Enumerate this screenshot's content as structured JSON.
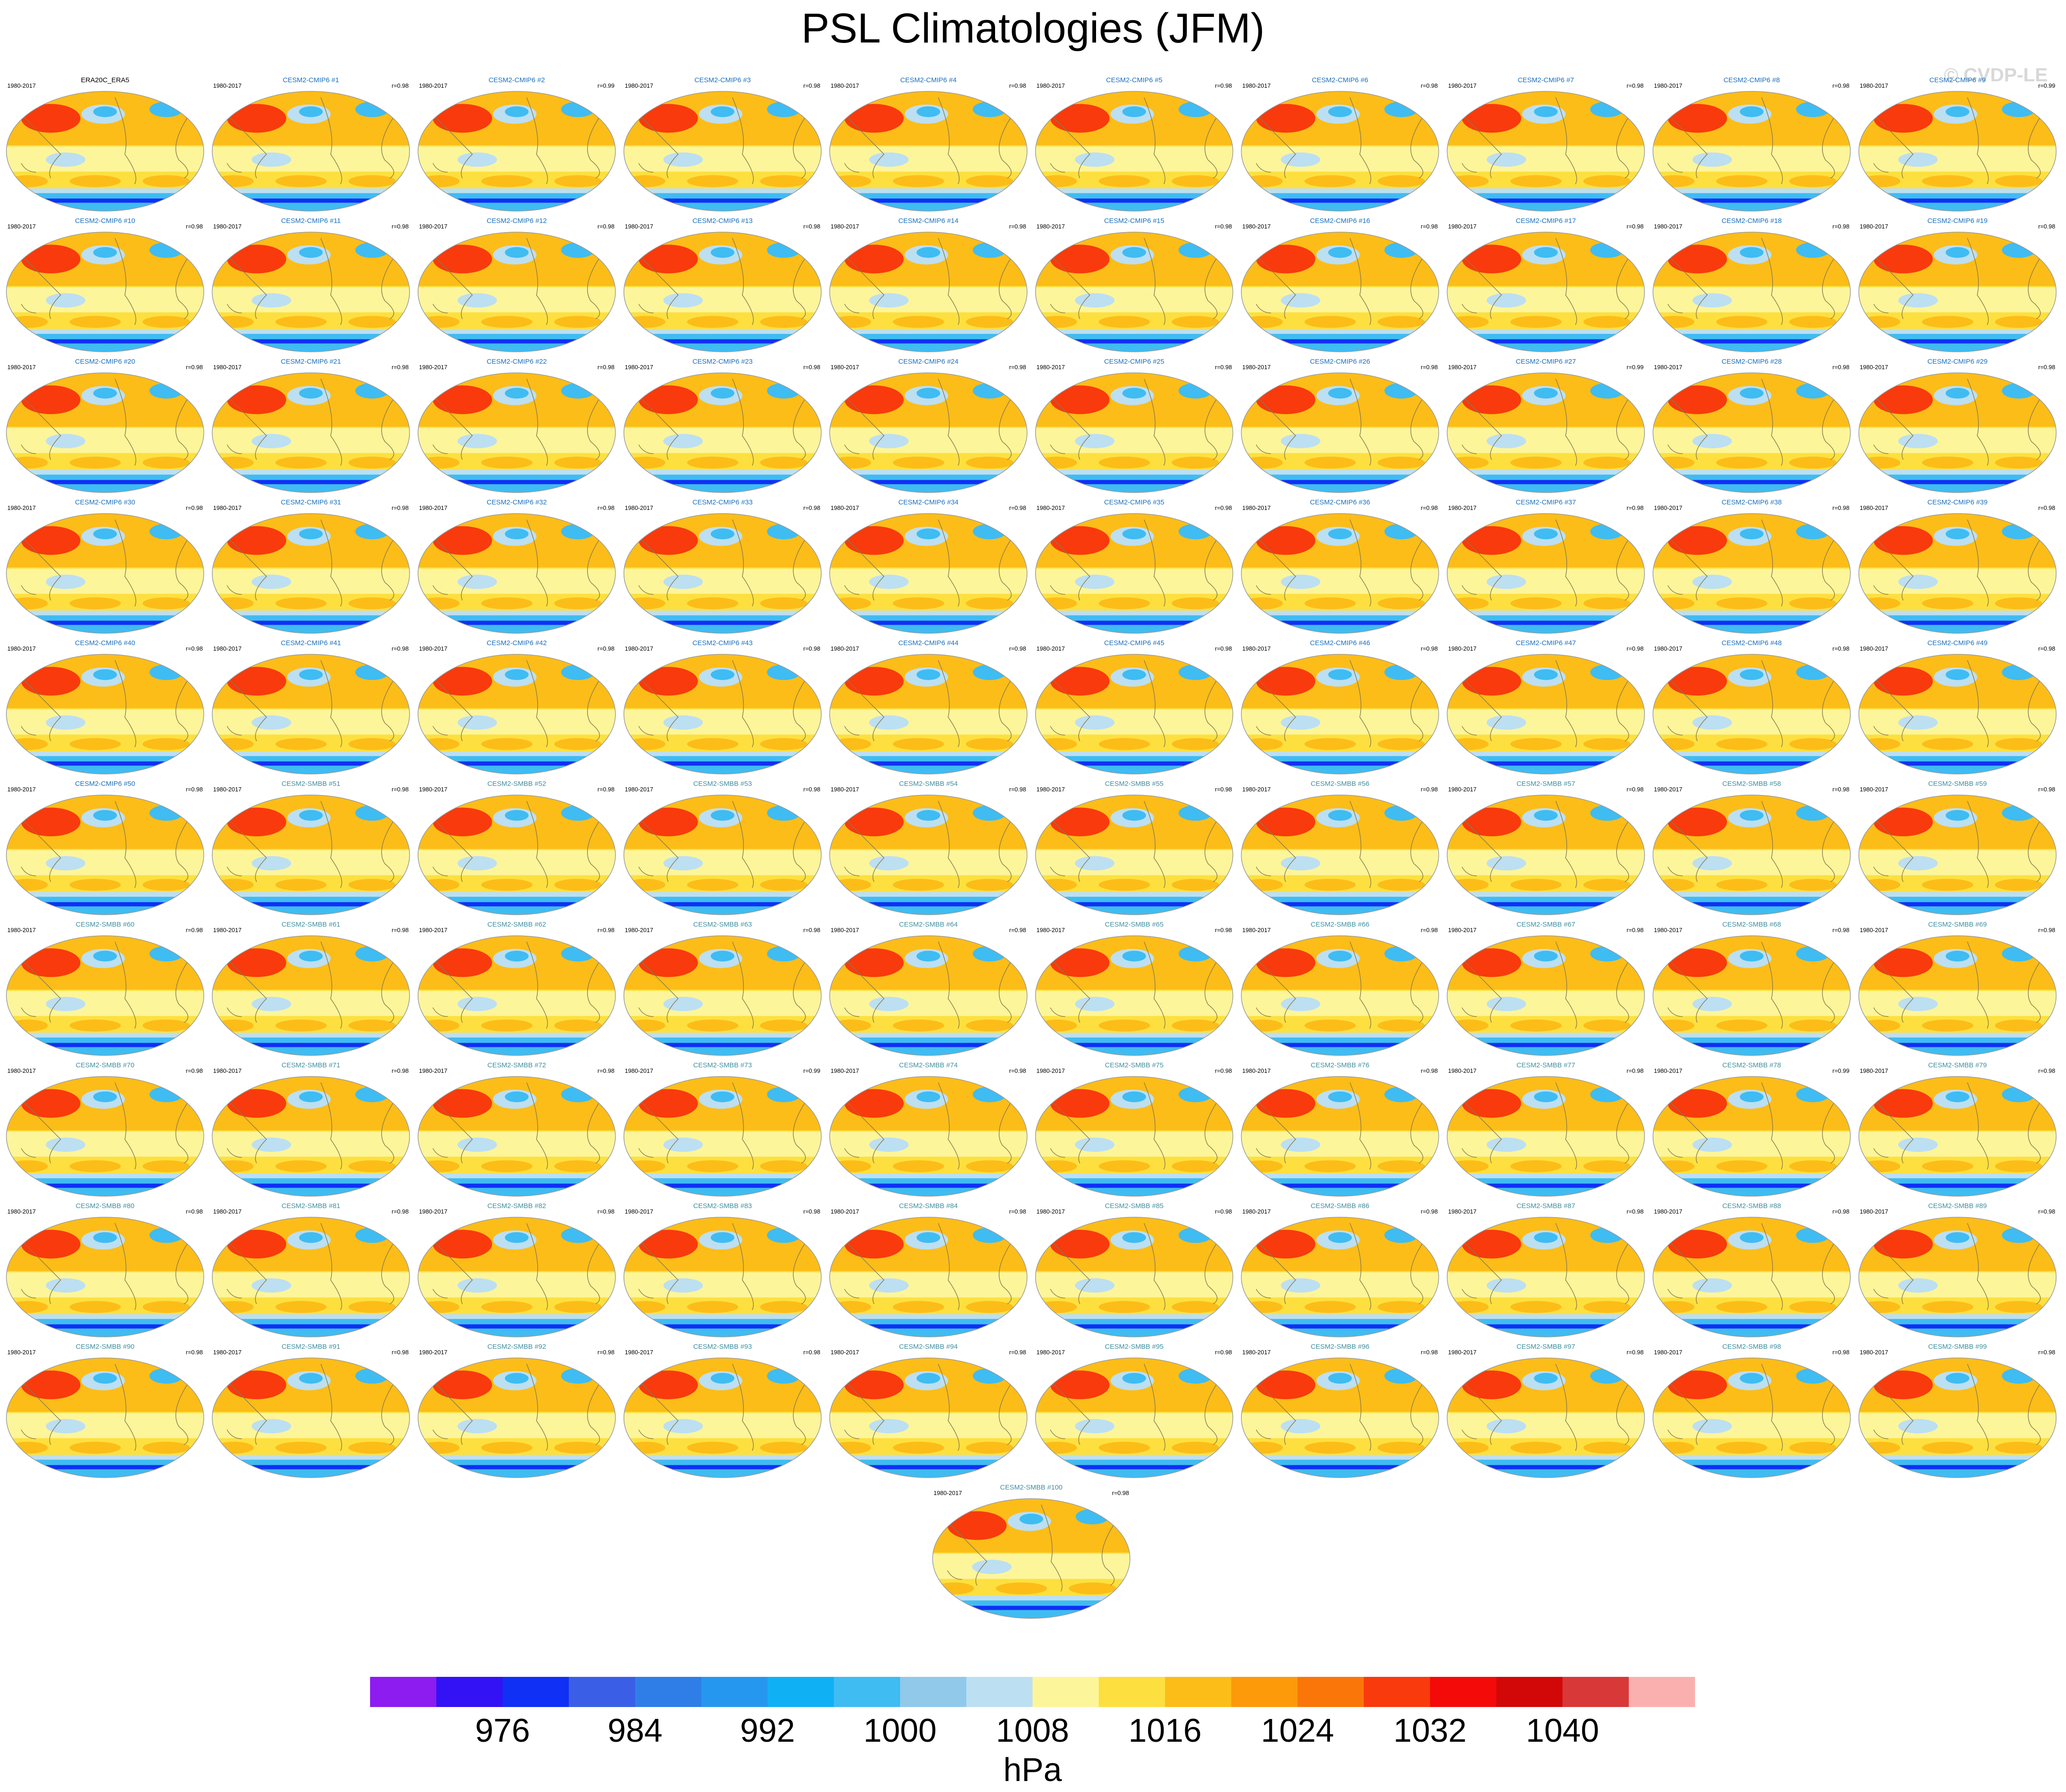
{
  "title": "PSL Climatologies (JFM)",
  "watermark": "© CVDP-LE",
  "chart_data": {
    "type": "heatmap",
    "title": "PSL Climatologies (JFM)",
    "panel_period": "1980-2017",
    "panels": [
      {
        "name": "ERA20C_ERA5",
        "period": "1980-2017",
        "r": ""
      },
      {
        "name": "CESM2-CMIP6 #1",
        "period": "1980-2017",
        "r": "r=0.98"
      },
      {
        "name": "CESM2-CMIP6 #2",
        "period": "1980-2017",
        "r": "r=0.99"
      },
      {
        "name": "CESM2-CMIP6 #3",
        "period": "1980-2017",
        "r": "r=0.98"
      },
      {
        "name": "CESM2-CMIP6 #4",
        "period": "1980-2017",
        "r": "r=0.98"
      },
      {
        "name": "CESM2-CMIP6 #5",
        "period": "1980-2017",
        "r": "r=0.98"
      },
      {
        "name": "CESM2-CMIP6 #6",
        "period": "1980-2017",
        "r": "r=0.98"
      },
      {
        "name": "CESM2-CMIP6 #7",
        "period": "1980-2017",
        "r": "r=0.98"
      },
      {
        "name": "CESM2-CMIP6 #8",
        "period": "1980-2017",
        "r": "r=0.98"
      },
      {
        "name": "CESM2-CMIP6 #9",
        "period": "1980-2017",
        "r": "r=0.99"
      },
      {
        "name": "CESM2-CMIP6 #10",
        "period": "1980-2017",
        "r": "r=0.98"
      },
      {
        "name": "CESM2-CMIP6 #11",
        "period": "1980-2017",
        "r": "r=0.98"
      },
      {
        "name": "CESM2-CMIP6 #12",
        "period": "1980-2017",
        "r": "r=0.98"
      },
      {
        "name": "CESM2-CMIP6 #13",
        "period": "1980-2017",
        "r": "r=0.98"
      },
      {
        "name": "CESM2-CMIP6 #14",
        "period": "1980-2017",
        "r": "r=0.98"
      },
      {
        "name": "CESM2-CMIP6 #15",
        "period": "1980-2017",
        "r": "r=0.98"
      },
      {
        "name": "CESM2-CMIP6 #16",
        "period": "1980-2017",
        "r": "r=0.98"
      },
      {
        "name": "CESM2-CMIP6 #17",
        "period": "1980-2017",
        "r": "r=0.98"
      },
      {
        "name": "CESM2-CMIP6 #18",
        "period": "1980-2017",
        "r": "r=0.98"
      },
      {
        "name": "CESM2-CMIP6 #19",
        "period": "1980-2017",
        "r": "r=0.98"
      },
      {
        "name": "CESM2-CMIP6 #20",
        "period": "1980-2017",
        "r": "r=0.98"
      },
      {
        "name": "CESM2-CMIP6 #21",
        "period": "1980-2017",
        "r": "r=0.98"
      },
      {
        "name": "CESM2-CMIP6 #22",
        "period": "1980-2017",
        "r": "r=0.98"
      },
      {
        "name": "CESM2-CMIP6 #23",
        "period": "1980-2017",
        "r": "r=0.98"
      },
      {
        "name": "CESM2-CMIP6 #24",
        "period": "1980-2017",
        "r": "r=0.98"
      },
      {
        "name": "CESM2-CMIP6 #25",
        "period": "1980-2017",
        "r": "r=0.98"
      },
      {
        "name": "CESM2-CMIP6 #26",
        "period": "1980-2017",
        "r": "r=0.98"
      },
      {
        "name": "CESM2-CMIP6 #27",
        "period": "1980-2017",
        "r": "r=0.99"
      },
      {
        "name": "CESM2-CMIP6 #28",
        "period": "1980-2017",
        "r": "r=0.98"
      },
      {
        "name": "CESM2-CMIP6 #29",
        "period": "1980-2017",
        "r": "r=0.98"
      },
      {
        "name": "CESM2-CMIP6 #30",
        "period": "1980-2017",
        "r": "r=0.98"
      },
      {
        "name": "CESM2-CMIP6 #31",
        "period": "1980-2017",
        "r": "r=0.98"
      },
      {
        "name": "CESM2-CMIP6 #32",
        "period": "1980-2017",
        "r": "r=0.98"
      },
      {
        "name": "CESM2-CMIP6 #33",
        "period": "1980-2017",
        "r": "r=0.98"
      },
      {
        "name": "CESM2-CMIP6 #34",
        "period": "1980-2017",
        "r": "r=0.98"
      },
      {
        "name": "CESM2-CMIP6 #35",
        "period": "1980-2017",
        "r": "r=0.98"
      },
      {
        "name": "CESM2-CMIP6 #36",
        "period": "1980-2017",
        "r": "r=0.98"
      },
      {
        "name": "CESM2-CMIP6 #37",
        "period": "1980-2017",
        "r": "r=0.98"
      },
      {
        "name": "CESM2-CMIP6 #38",
        "period": "1980-2017",
        "r": "r=0.98"
      },
      {
        "name": "CESM2-CMIP6 #39",
        "period": "1980-2017",
        "r": "r=0.98"
      },
      {
        "name": "CESM2-CMIP6 #40",
        "period": "1980-2017",
        "r": "r=0.98"
      },
      {
        "name": "CESM2-CMIP6 #41",
        "period": "1980-2017",
        "r": "r=0.98"
      },
      {
        "name": "CESM2-CMIP6 #42",
        "period": "1980-2017",
        "r": "r=0.98"
      },
      {
        "name": "CESM2-CMIP6 #43",
        "period": "1980-2017",
        "r": "r=0.98"
      },
      {
        "name": "CESM2-CMIP6 #44",
        "period": "1980-2017",
        "r": "r=0.98"
      },
      {
        "name": "CESM2-CMIP6 #45",
        "period": "1980-2017",
        "r": "r=0.98"
      },
      {
        "name": "CESM2-CMIP6 #46",
        "period": "1980-2017",
        "r": "r=0.98"
      },
      {
        "name": "CESM2-CMIP6 #47",
        "period": "1980-2017",
        "r": "r=0.98"
      },
      {
        "name": "CESM2-CMIP6 #48",
        "period": "1980-2017",
        "r": "r=0.98"
      },
      {
        "name": "CESM2-CMIP6 #49",
        "period": "1980-2017",
        "r": "r=0.98"
      },
      {
        "name": "CESM2-CMIP6 #50",
        "period": "1980-2017",
        "r": "r=0.98"
      },
      {
        "name": "CESM2-SMBB #51",
        "period": "1980-2017",
        "r": "r=0.98"
      },
      {
        "name": "CESM2-SMBB #52",
        "period": "1980-2017",
        "r": "r=0.98"
      },
      {
        "name": "CESM2-SMBB #53",
        "period": "1980-2017",
        "r": "r=0.98"
      },
      {
        "name": "CESM2-SMBB #54",
        "period": "1980-2017",
        "r": "r=0.98"
      },
      {
        "name": "CESM2-SMBB #55",
        "period": "1980-2017",
        "r": "r=0.98"
      },
      {
        "name": "CESM2-SMBB #56",
        "period": "1980-2017",
        "r": "r=0.98"
      },
      {
        "name": "CESM2-SMBB #57",
        "period": "1980-2017",
        "r": "r=0.98"
      },
      {
        "name": "CESM2-SMBB #58",
        "period": "1980-2017",
        "r": "r=0.98"
      },
      {
        "name": "CESM2-SMBB #59",
        "period": "1980-2017",
        "r": "r=0.98"
      },
      {
        "name": "CESM2-SMBB #60",
        "period": "1980-2017",
        "r": "r=0.98"
      },
      {
        "name": "CESM2-SMBB #61",
        "period": "1980-2017",
        "r": "r=0.98"
      },
      {
        "name": "CESM2-SMBB #62",
        "period": "1980-2017",
        "r": "r=0.98"
      },
      {
        "name": "CESM2-SMBB #63",
        "period": "1980-2017",
        "r": "r=0.98"
      },
      {
        "name": "CESM2-SMBB #64",
        "period": "1980-2017",
        "r": "r=0.98"
      },
      {
        "name": "CESM2-SMBB #65",
        "period": "1980-2017",
        "r": "r=0.98"
      },
      {
        "name": "CESM2-SMBB #66",
        "period": "1980-2017",
        "r": "r=0.98"
      },
      {
        "name": "CESM2-SMBB #67",
        "period": "1980-2017",
        "r": "r=0.98"
      },
      {
        "name": "CESM2-SMBB #68",
        "period": "1980-2017",
        "r": "r=0.98"
      },
      {
        "name": "CESM2-SMBB #69",
        "period": "1980-2017",
        "r": "r=0.98"
      },
      {
        "name": "CESM2-SMBB #70",
        "period": "1980-2017",
        "r": "r=0.98"
      },
      {
        "name": "CESM2-SMBB #71",
        "period": "1980-2017",
        "r": "r=0.98"
      },
      {
        "name": "CESM2-SMBB #72",
        "period": "1980-2017",
        "r": "r=0.98"
      },
      {
        "name": "CESM2-SMBB #73",
        "period": "1980-2017",
        "r": "r=0.99"
      },
      {
        "name": "CESM2-SMBB #74",
        "period": "1980-2017",
        "r": "r=0.98"
      },
      {
        "name": "CESM2-SMBB #75",
        "period": "1980-2017",
        "r": "r=0.98"
      },
      {
        "name": "CESM2-SMBB #76",
        "period": "1980-2017",
        "r": "r=0.98"
      },
      {
        "name": "CESM2-SMBB #77",
        "period": "1980-2017",
        "r": "r=0.98"
      },
      {
        "name": "CESM2-SMBB #78",
        "period": "1980-2017",
        "r": "r=0.99"
      },
      {
        "name": "CESM2-SMBB #79",
        "period": "1980-2017",
        "r": "r=0.98"
      },
      {
        "name": "CESM2-SMBB #80",
        "period": "1980-2017",
        "r": "r=0.98"
      },
      {
        "name": "CESM2-SMBB #81",
        "period": "1980-2017",
        "r": "r=0.98"
      },
      {
        "name": "CESM2-SMBB #82",
        "period": "1980-2017",
        "r": "r=0.98"
      },
      {
        "name": "CESM2-SMBB #83",
        "period": "1980-2017",
        "r": "r=0.98"
      },
      {
        "name": "CESM2-SMBB #84",
        "period": "1980-2017",
        "r": "r=0.98"
      },
      {
        "name": "CESM2-SMBB #85",
        "period": "1980-2017",
        "r": "r=0.98"
      },
      {
        "name": "CESM2-SMBB #86",
        "period": "1980-2017",
        "r": "r=0.98"
      },
      {
        "name": "CESM2-SMBB #87",
        "period": "1980-2017",
        "r": "r=0.98"
      },
      {
        "name": "CESM2-SMBB #88",
        "period": "1980-2017",
        "r": "r=0.98"
      },
      {
        "name": "CESM2-SMBB #89",
        "period": "1980-2017",
        "r": "r=0.98"
      },
      {
        "name": "CESM2-SMBB #90",
        "period": "1980-2017",
        "r": "r=0.98"
      },
      {
        "name": "CESM2-SMBB #91",
        "period": "1980-2017",
        "r": "r=0.98"
      },
      {
        "name": "CESM2-SMBB #92",
        "period": "1980-2017",
        "r": "r=0.98"
      },
      {
        "name": "CESM2-SMBB #93",
        "period": "1980-2017",
        "r": "r=0.98"
      },
      {
        "name": "CESM2-SMBB #94",
        "period": "1980-2017",
        "r": "r=0.98"
      },
      {
        "name": "CESM2-SMBB #95",
        "period": "1980-2017",
        "r": "r=0.98"
      },
      {
        "name": "CESM2-SMBB #96",
        "period": "1980-2017",
        "r": "r=0.98"
      },
      {
        "name": "CESM2-SMBB #97",
        "period": "1980-2017",
        "r": "r=0.98"
      },
      {
        "name": "CESM2-SMBB #98",
        "period": "1980-2017",
        "r": "r=0.98"
      },
      {
        "name": "CESM2-SMBB #99",
        "period": "1980-2017",
        "r": "r=0.98"
      },
      {
        "name": "CESM2-SMBB #100",
        "period": "1980-2017",
        "r": "r=0.98"
      }
    ],
    "colorbar": {
      "label": "hPa",
      "tick_labels": [
        "976",
        "984",
        "992",
        "1000",
        "1008",
        "1016",
        "1024",
        "1032",
        "1040"
      ],
      "colors": [
        "#8c1cf0",
        "#3312f5",
        "#1030f5",
        "#3a5ee6",
        "#2f7ee8",
        "#2697ef",
        "#10b0f5",
        "#3fbcf2",
        "#90c9ea",
        "#bcdff2",
        "#fdf59a",
        "#fde03f",
        "#fcbd18",
        "#fc9a0a",
        "#fb7608",
        "#f93a0c",
        "#f40a08",
        "#d20808",
        "#d83838",
        "#fbb0b0"
      ]
    },
    "name_colors": {
      "observation": "#000000",
      "CESM2-CMIP6": "#1a6fc0",
      "CESM2-SMBB": "#3f8fa0"
    },
    "map_colors": {
      "high": "#f93a0c",
      "mid_high": "#fcbd18",
      "mid": "#fde03f",
      "low": "#fdf59a",
      "trough": "#bcdff2",
      "aleutian": "#3fbcf2",
      "southern": "#1030f5",
      "deep": "#3312f5",
      "coast": "#8a7a4a"
    }
  }
}
